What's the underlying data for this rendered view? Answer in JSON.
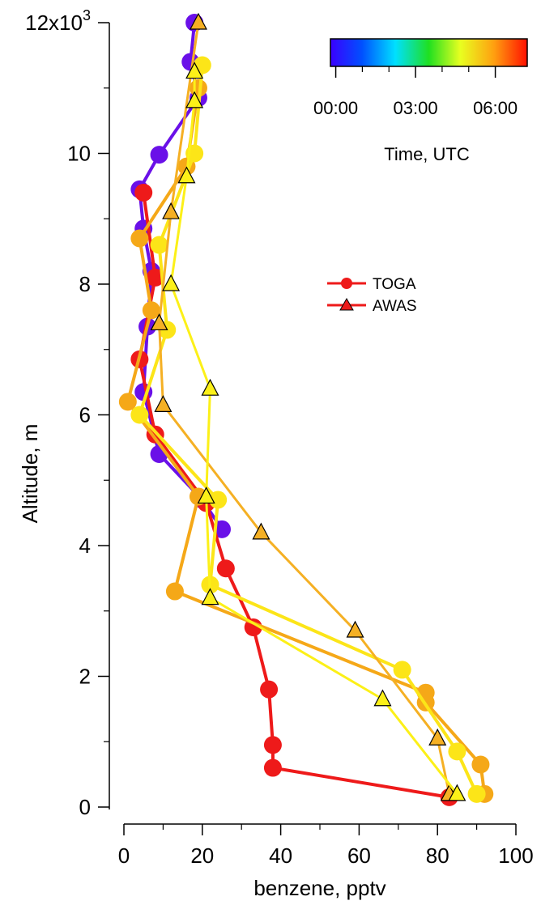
{
  "chart_data": {
    "type": "scatter",
    "xlabel": "benzene, pptv",
    "ylabel": "Altitude, m",
    "xlim": [
      0,
      100
    ],
    "ylim": [
      0,
      12000
    ],
    "x_ticks": [
      0,
      20,
      40,
      60,
      80,
      100
    ],
    "x_tick_labels": [
      "0",
      "20",
      "40",
      "60",
      "80",
      "100"
    ],
    "y_ticks": [
      0,
      2000,
      4000,
      6000,
      8000,
      10000,
      12000
    ],
    "y_tick_labels": [
      "0",
      "2",
      "4",
      "6",
      "8",
      "10",
      "12x10"
    ],
    "y_top_exponent": "3",
    "grid": false,
    "colorbar": {
      "title": "Time, UTC",
      "tick_labels": [
        "00:00",
        "03:00",
        "06:00"
      ],
      "tick_hours": [
        0,
        3,
        6
      ],
      "range_hours": [
        -0.2,
        7.2
      ]
    },
    "legend": {
      "placement": "right-middle",
      "entries": [
        {
          "name": "TOGA",
          "marker": "circle",
          "color": "#ee1a1a"
        },
        {
          "name": "AWAS",
          "marker": "triangle",
          "color": "#ee1a1a"
        }
      ]
    },
    "series": [
      {
        "name": "TOGA",
        "color": "#6a10e8",
        "marker": "circle",
        "line": true,
        "x": [
          18,
          17,
          19,
          9,
          4,
          5,
          7,
          6,
          5,
          9,
          20,
          25
        ],
        "y": [
          12000,
          11400,
          10850,
          9980,
          9450,
          8850,
          8200,
          7350,
          6350,
          5400,
          4700,
          4250
        ]
      },
      {
        "name": "TOGA",
        "color": "#ee1a1a",
        "marker": "circle",
        "line": true,
        "x": [
          5,
          8,
          4,
          8,
          21,
          26,
          33,
          37,
          38,
          38,
          83
        ],
        "y": [
          9400,
          8100,
          6850,
          5700,
          4650,
          3650,
          2750,
          1800,
          950,
          600,
          150
        ]
      },
      {
        "name": "TOGA",
        "color": "#f5a818",
        "marker": "circle",
        "line": true,
        "x": [
          19,
          16,
          4,
          7,
          1,
          19,
          13,
          77,
          77,
          91,
          92
        ],
        "y": [
          11000,
          9800,
          8700,
          7600,
          6200,
          4750,
          3300,
          1750,
          1600,
          650,
          200
        ]
      },
      {
        "name": "TOGA",
        "color": "#fce518",
        "marker": "circle",
        "line": true,
        "x": [
          20,
          18,
          9,
          11,
          4,
          24,
          22,
          71,
          85,
          90
        ],
        "y": [
          11350,
          10000,
          8600,
          7300,
          6000,
          4700,
          3400,
          2100,
          850,
          200
        ]
      },
      {
        "name": "AWAS",
        "color": "#f5b024",
        "marker": "triangle",
        "line": true,
        "x": [
          19,
          12,
          9,
          10,
          35,
          59,
          80,
          83
        ],
        "y": [
          12000,
          9100,
          7400,
          6150,
          4200,
          2700,
          1050,
          200
        ]
      },
      {
        "name": "AWAS",
        "color": "#fcf018",
        "marker": "triangle",
        "line": true,
        "x": [
          18,
          18,
          16,
          12,
          22,
          21,
          22,
          66,
          85
        ],
        "y": [
          11250,
          10800,
          9650,
          8000,
          6400,
          4750,
          3200,
          1650,
          200
        ]
      }
    ]
  }
}
